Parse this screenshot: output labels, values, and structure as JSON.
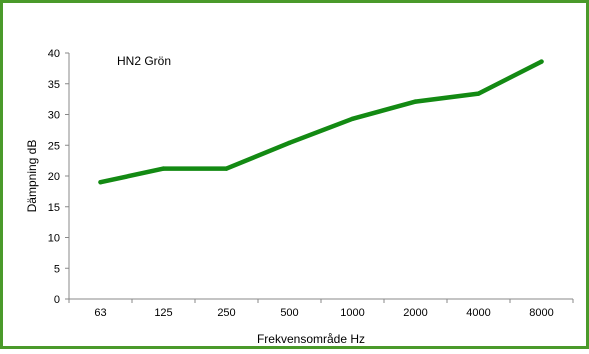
{
  "frame_color": "#4a9a2a",
  "chart_data": {
    "type": "line",
    "title": "",
    "annotation": "HN2 Grön",
    "xlabel": "Frekvensområde Hz",
    "ylabel": "Dämpning dB",
    "categories": [
      "63",
      "125",
      "250",
      "500",
      "1000",
      "2000",
      "4000",
      "8000"
    ],
    "series": [
      {
        "name": "",
        "color": "#138a13",
        "values": [
          19.0,
          21.2,
          21.2,
          25.4,
          29.3,
          32.1,
          33.4,
          38.6
        ]
      }
    ],
    "ylim": [
      0,
      40
    ],
    "yticks": [
      0,
      5,
      10,
      15,
      20,
      25,
      30,
      35,
      40
    ],
    "grid": false,
    "legend": "none"
  }
}
